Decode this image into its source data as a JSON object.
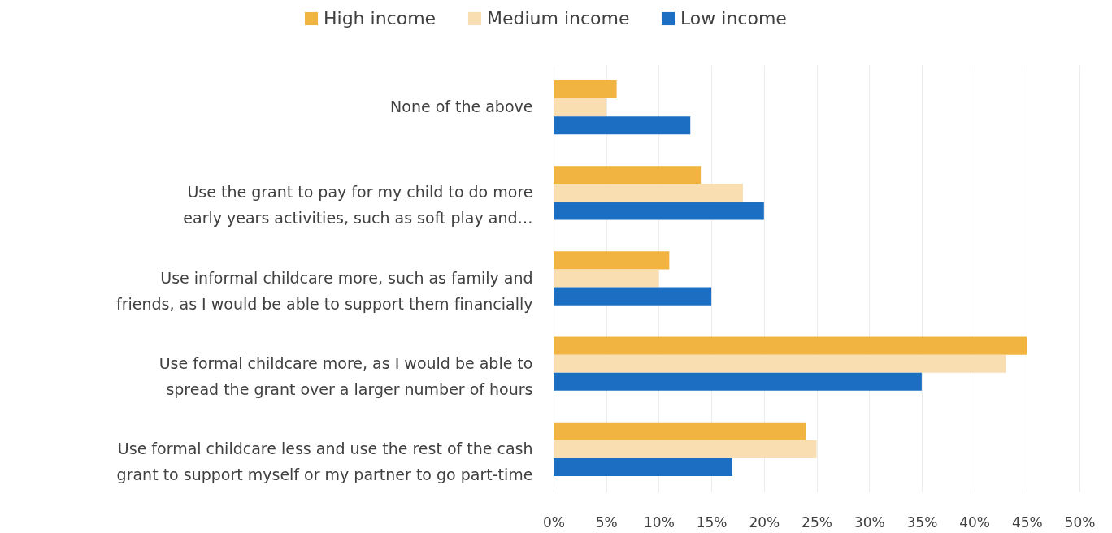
{
  "chart_data": {
    "type": "bar",
    "orientation": "horizontal",
    "categories": [
      "None of the above",
      "Use the grant to pay for my child to do more early years activities, such as soft play and…",
      "Use informal childcare more, such as family and friends, as I would be able to support them financially",
      "Use formal childcare more, as I would be able to spread the grant over a larger number of hours",
      "Use formal childcare less and use the rest of the cash grant to support myself or my partner to go part-time"
    ],
    "series": [
      {
        "name": "High income",
        "color": "#f2b441",
        "values": [
          6,
          14,
          11,
          45,
          24
        ]
      },
      {
        "name": "Medium income",
        "color": "#f8deb0",
        "values": [
          5,
          18,
          10,
          43,
          25
        ]
      },
      {
        "name": "Low income",
        "color": "#1b6ec2",
        "values": [
          13,
          20,
          15,
          35,
          17
        ]
      }
    ],
    "xlim": [
      0,
      50
    ],
    "xticks": [
      {
        "value": 0,
        "label": "0%"
      },
      {
        "value": 5,
        "label": "5%"
      },
      {
        "value": 10,
        "label": "10%"
      },
      {
        "value": 15,
        "label": "15%"
      },
      {
        "value": 20,
        "label": "20%"
      },
      {
        "value": 25,
        "label": "25%"
      },
      {
        "value": 30,
        "label": "30%"
      },
      {
        "value": 35,
        "label": "35%"
      },
      {
        "value": 40,
        "label": "40%"
      },
      {
        "value": 45,
        "label": "45%"
      },
      {
        "value": 50,
        "label": "50%"
      }
    ],
    "grid": "x",
    "legend": "top"
  }
}
